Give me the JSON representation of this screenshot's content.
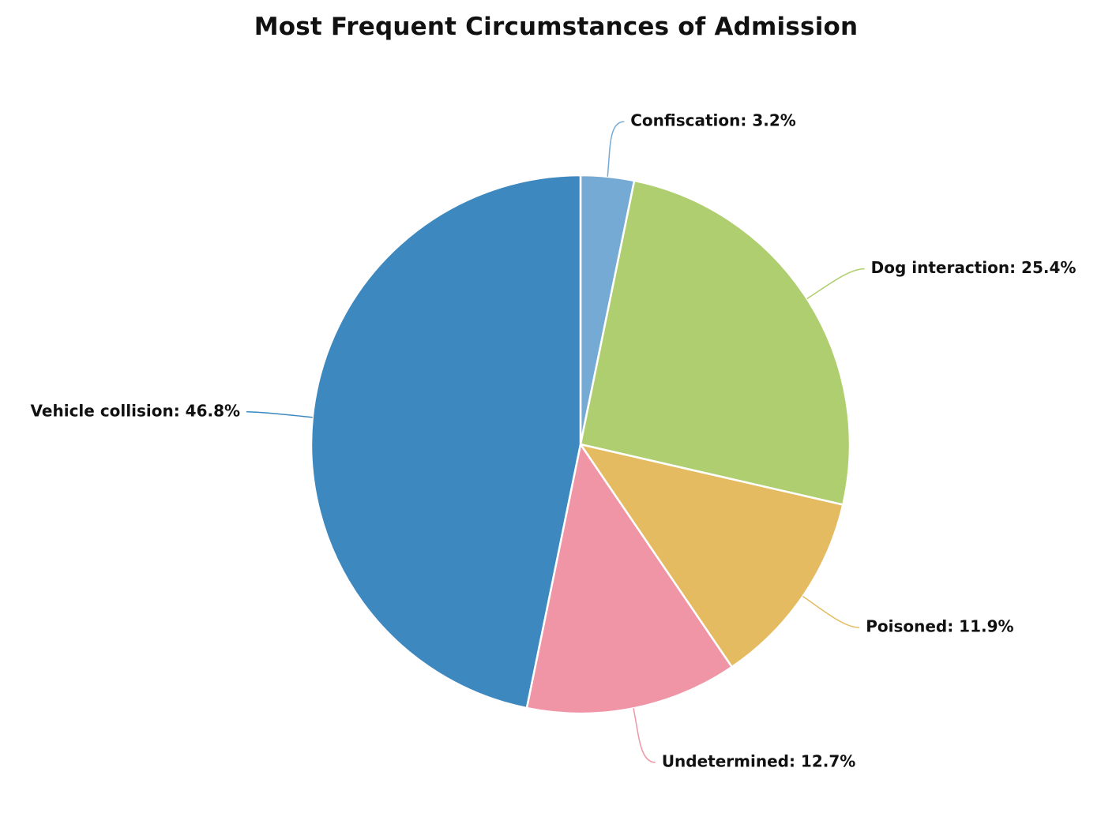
{
  "chart_data": {
    "type": "pie",
    "title": "Most Frequent Circumstances of Admission",
    "start_angle_deg": 0,
    "direction": "clockwise",
    "slices": [
      {
        "name": "Confiscation",
        "value": 3.2,
        "label": "Confiscation: 3.2%",
        "color": "#75aad5"
      },
      {
        "name": "Dog interaction",
        "value": 25.4,
        "label": "Dog interaction: 25.4%",
        "color": "#afce6f"
      },
      {
        "name": "Poisoned",
        "value": 11.9,
        "label": "Poisoned: 11.9%",
        "color": "#e5bb62"
      },
      {
        "name": "Undetermined",
        "value": 12.7,
        "label": "Undetermined: 12.7%",
        "color": "#ef95a5"
      },
      {
        "name": "Vehicle collision",
        "value": 46.8,
        "label": "Vehicle collision: 46.8%",
        "color": "#3d88bf"
      }
    ]
  }
}
